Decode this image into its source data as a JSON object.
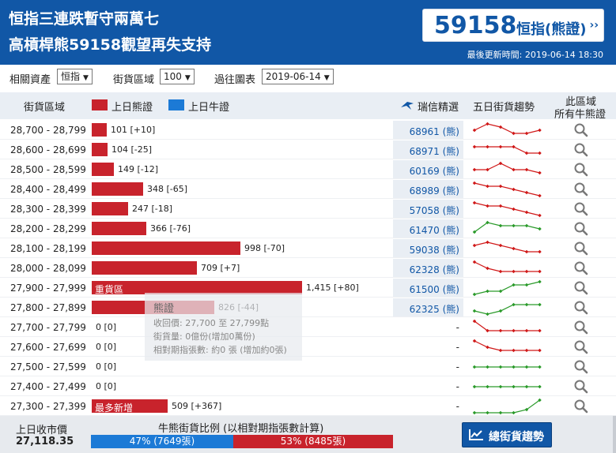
{
  "header": {
    "title_line1": "恒指三連跌暫守兩萬七",
    "title_line2": "高槓桿熊59158觀望再失支持",
    "price_code": "59158",
    "price_label": "恒指(熊證)",
    "price_arrow": "››",
    "update_label": "最後更新時間:",
    "update_time": "2019-06-14 18:30"
  },
  "filters": {
    "asset_label": "相關資產",
    "asset_value": "恒指",
    "range_label": "街貨區域",
    "range_value": "100",
    "history_label": "過往圖表",
    "history_value": "2019-06-14"
  },
  "table_header": {
    "range_col": "街貨區域",
    "legend_bear": "上日熊證",
    "legend_bull": "上日牛證",
    "ubs_col": "瑞信精選",
    "trend_col": "五日街貨趨勢",
    "all_col_line1": "此區域",
    "all_col_line2": "所有牛熊證"
  },
  "rows": [
    {
      "range": "28,700 - 28,799",
      "value": 101,
      "value_label": "101 [+10]",
      "tag": "",
      "ubs": "68961 (熊)",
      "trend": [
        3,
        5,
        4,
        2,
        2,
        3
      ],
      "trend_color": "#d01818"
    },
    {
      "range": "28,600 - 28,699",
      "value": 104,
      "value_label": "104 [-25]",
      "tag": "",
      "ubs": "68971 (熊)",
      "trend": [
        4,
        4,
        4,
        4,
        2,
        2
      ],
      "trend_color": "#d01818"
    },
    {
      "range": "28,500 - 28,599",
      "value": 149,
      "value_label": "149 [-12]",
      "tag": "",
      "ubs": "60169 (熊)",
      "trend": [
        3,
        3,
        5,
        3,
        3,
        2
      ],
      "trend_color": "#d01818"
    },
    {
      "range": "28,400 - 28,499",
      "value": 348,
      "value_label": "348 [-65]",
      "tag": "",
      "ubs": "68989 (熊)",
      "trend": [
        5,
        4,
        4,
        3,
        2,
        1
      ],
      "trend_color": "#d01818"
    },
    {
      "range": "28,300 - 28,399",
      "value": 247,
      "value_label": "247 [-18]",
      "tag": "",
      "ubs": "57058 (熊)",
      "trend": [
        5,
        4,
        4,
        3,
        2,
        1
      ],
      "trend_color": "#d01818"
    },
    {
      "range": "28,200 - 28,299",
      "value": 366,
      "value_label": "366 [-76]",
      "tag": "",
      "ubs": "61470 (熊)",
      "trend": [
        2,
        5,
        4,
        4,
        4,
        3
      ],
      "trend_color": "#2a9a2a"
    },
    {
      "range": "28,100 - 28,199",
      "value": 998,
      "value_label": "998 [-70]",
      "tag": "",
      "ubs": "59038 (熊)",
      "trend": [
        4,
        5,
        4,
        3,
        2,
        2
      ],
      "trend_color": "#d01818"
    },
    {
      "range": "28,000 - 28,099",
      "value": 709,
      "value_label": "709 [+7]",
      "tag": "",
      "ubs": "62328 (熊)",
      "trend": [
        5,
        3,
        2,
        2,
        2,
        2
      ],
      "trend_color": "#d01818"
    },
    {
      "range": "27,900 - 27,999",
      "value": 1415,
      "value_label": "1,415 [+80]",
      "tag": "重貨區",
      "ubs": "61500 (熊)",
      "trend": [
        1,
        2,
        2,
        4,
        4,
        5
      ],
      "trend_color": "#2a9a2a"
    },
    {
      "range": "27,800 - 27,899",
      "value": 826,
      "value_label": "826 [-44]",
      "tag": "",
      "ubs": "62325 (熊)",
      "trend": [
        2,
        1,
        2,
        4,
        4,
        4
      ],
      "trend_color": "#2a9a2a"
    },
    {
      "range": "27,700 - 27,799",
      "value": 0,
      "value_label": "0 [0]",
      "tag": "",
      "ubs": "-",
      "trend": [
        5,
        2,
        2,
        2,
        2,
        2
      ],
      "trend_color": "#d01818"
    },
    {
      "range": "27,600 - 27,699",
      "value": 0,
      "value_label": "0 [0]",
      "tag": "",
      "ubs": "-",
      "trend": [
        5,
        3,
        2,
        2,
        2,
        2
      ],
      "trend_color": "#d01818"
    },
    {
      "range": "27,500 - 27,599",
      "value": 0,
      "value_label": "0 [0]",
      "tag": "",
      "ubs": "-",
      "trend": [
        3,
        3,
        3,
        3,
        3,
        3
      ],
      "trend_color": "#2a9a2a"
    },
    {
      "range": "27,400 - 27,499",
      "value": 0,
      "value_label": "0 [0]",
      "tag": "",
      "ubs": "-",
      "trend": [
        3,
        3,
        3,
        3,
        3,
        3
      ],
      "trend_color": "#2a9a2a"
    },
    {
      "range": "27,300 - 27,399",
      "value": 509,
      "value_label": "509 [+367]",
      "tag": "最多新增",
      "ubs": "-",
      "trend": [
        1,
        1,
        1,
        1,
        2,
        5
      ],
      "trend_color": "#2a9a2a"
    }
  ],
  "tooltip": {
    "title": "熊證",
    "line1": "收回價: 27,700 至 27,799點",
    "line2": "街貨量: 0億份(增加0萬份)",
    "line3": "相對期指張數: 約0 張 (增加約0張)"
  },
  "footer": {
    "close_label": "上日收市價",
    "close_value": "27,118.35",
    "ratio_title": "牛熊街貨比例 (以相對期指張數計算)",
    "bull_text": "47% (7649張)",
    "bear_text": "53% (8485張)",
    "bull_pct": 47,
    "bear_pct": 53,
    "trend_button": "總街貨趨勢"
  },
  "colors": {
    "brand": "#1157a6",
    "bear": "#c8232c",
    "bull": "#1c7ad6"
  }
}
